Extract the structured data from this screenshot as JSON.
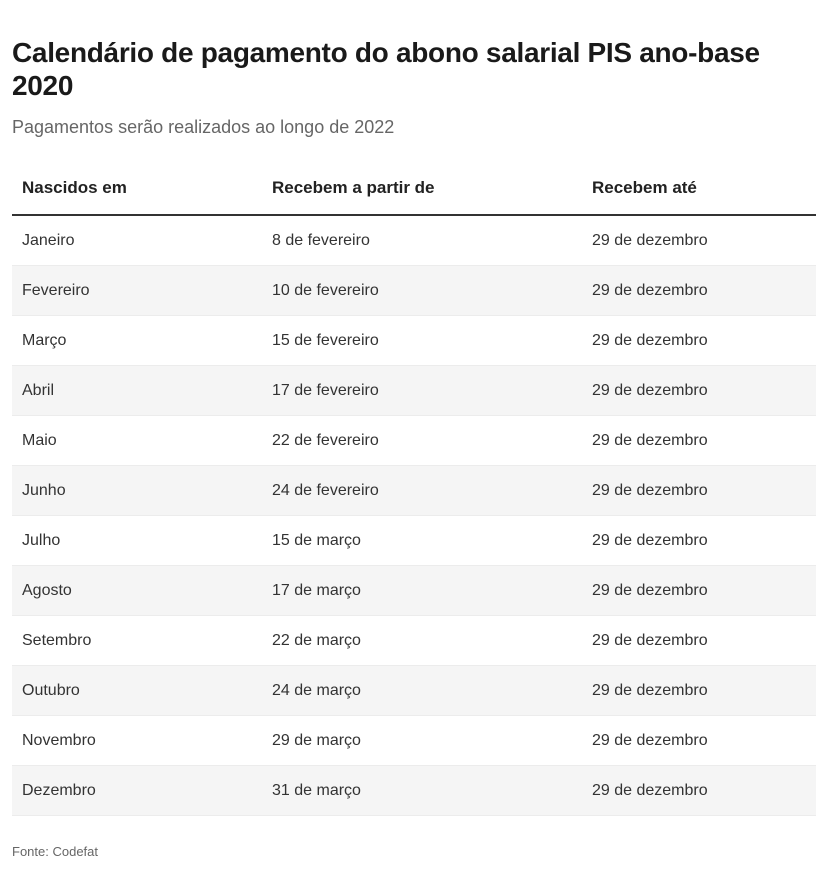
{
  "chart_data": {
    "type": "table",
    "title": "Calendário de pagamento do abono salarial PIS ano-base 2020",
    "subtitle": "Pagamentos serão realizados ao longo de 2022",
    "columns": [
      "Nascidos em",
      "Recebem a partir de",
      "Recebem até"
    ],
    "rows": [
      [
        "Janeiro",
        "8 de fevereiro",
        "29 de dezembro"
      ],
      [
        "Fevereiro",
        "10 de fevereiro",
        "29 de dezembro"
      ],
      [
        "Março",
        "15 de fevereiro",
        "29 de dezembro"
      ],
      [
        "Abril",
        "17 de fevereiro",
        "29 de dezembro"
      ],
      [
        "Maio",
        "22 de fevereiro",
        "29 de dezembro"
      ],
      [
        "Junho",
        "24 de fevereiro",
        "29 de dezembro"
      ],
      [
        "Julho",
        "15 de março",
        "29 de dezembro"
      ],
      [
        "Agosto",
        "17 de março",
        "29 de dezembro"
      ],
      [
        "Setembro",
        "22 de março",
        "29 de dezembro"
      ],
      [
        "Outubro",
        "24 de março",
        "29 de dezembro"
      ],
      [
        "Novembro",
        "29 de março",
        "29 de dezembro"
      ],
      [
        "Dezembro",
        "31 de março",
        "29 de dezembro"
      ]
    ],
    "source": "Fonte: Codefat"
  }
}
